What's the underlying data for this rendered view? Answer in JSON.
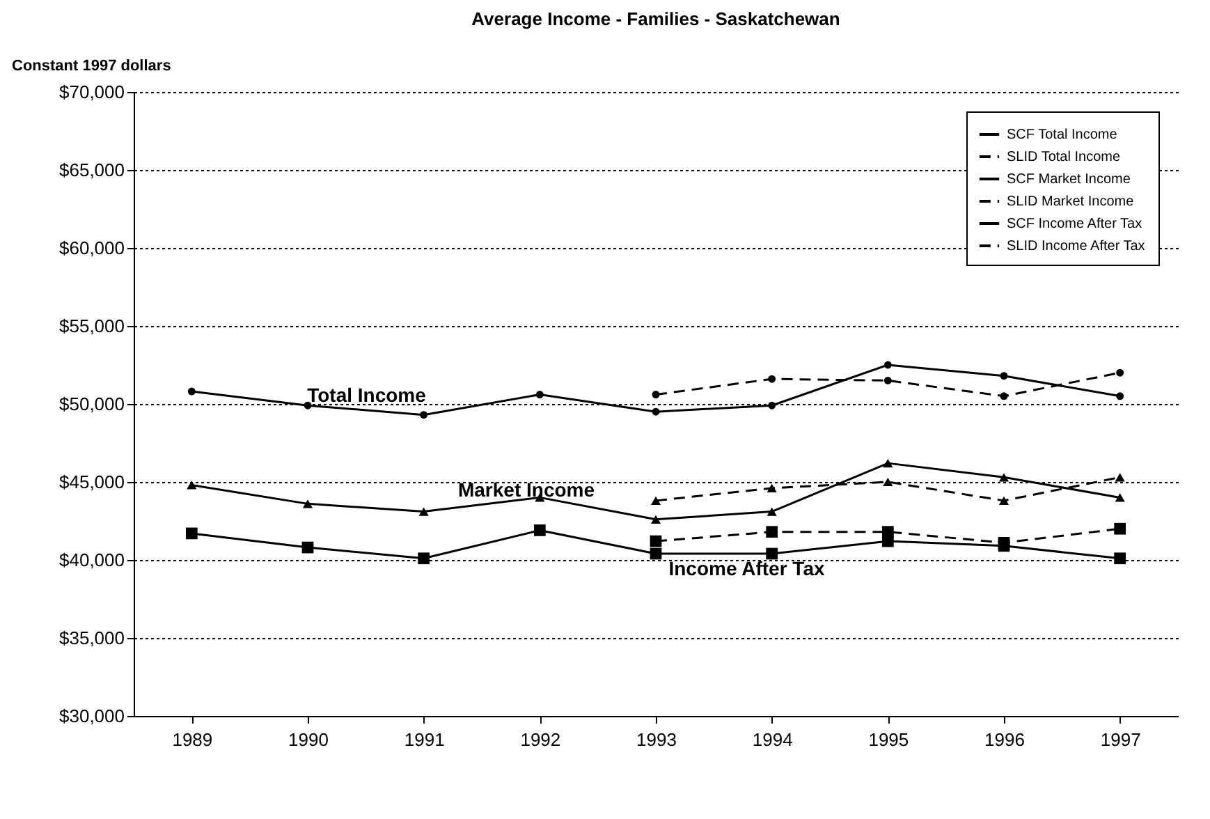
{
  "chart_data": {
    "type": "line",
    "title": "Average Income - Families - Saskatchewan",
    "ylabel": "Constant 1997 dollars",
    "categories": [
      "1989",
      "1990",
      "1991",
      "1992",
      "1993",
      "1994",
      "1995",
      "1996",
      "1997"
    ],
    "series": [
      {
        "name": "SCF Total Income",
        "color": "#000000",
        "marker": "circle",
        "line_style": "solid",
        "values": [
          50800,
          49900,
          49300,
          50600,
          49500,
          49900,
          52500,
          51800,
          50500
        ]
      },
      {
        "name": "SLID Total Income",
        "color": "#000000",
        "marker": "circle",
        "line_style": "dashed",
        "values": [
          null,
          null,
          null,
          null,
          50600,
          51600,
          51500,
          50500,
          52000
        ]
      },
      {
        "name": "SCF Market Income",
        "color": "#000000",
        "marker": "triangle",
        "line_style": "solid",
        "values": [
          44800,
          43600,
          43100,
          44000,
          42600,
          43100,
          46200,
          45300,
          44000
        ]
      },
      {
        "name": "SLID Market Income",
        "color": "#000000",
        "marker": "triangle",
        "line_style": "dashed",
        "values": [
          null,
          null,
          null,
          null,
          43800,
          44600,
          45000,
          43800,
          45300
        ]
      },
      {
        "name": "SCF Income After Tax",
        "color": "#000000",
        "marker": "square",
        "line_style": "solid",
        "values": [
          41700,
          40800,
          40100,
          41900,
          40400,
          40400,
          41200,
          40900,
          40100
        ]
      },
      {
        "name": "SLID Income After Tax",
        "color": "#000000",
        "marker": "square",
        "line_style": "dashed",
        "values": [
          null,
          null,
          null,
          null,
          41200,
          41800,
          41800,
          41100,
          42000
        ]
      }
    ],
    "annotations": [
      "Total Income",
      "Market Income",
      "Income After Tax"
    ],
    "ylim": [
      30000,
      70000
    ],
    "yticks": [
      {
        "value": 30000,
        "label": "$30,000"
      },
      {
        "value": 35000,
        "label": "$35,000"
      },
      {
        "value": 40000,
        "label": "$40,000"
      },
      {
        "value": 45000,
        "label": "$45,000"
      },
      {
        "value": 50000,
        "label": "$50,000"
      },
      {
        "value": 55000,
        "label": "$55,000"
      },
      {
        "value": 60000,
        "label": "$60,000"
      },
      {
        "value": 65000,
        "label": "$65,000"
      },
      {
        "value": 70000,
        "label": "$70,000"
      }
    ],
    "grid": "y",
    "legend": "top right"
  }
}
